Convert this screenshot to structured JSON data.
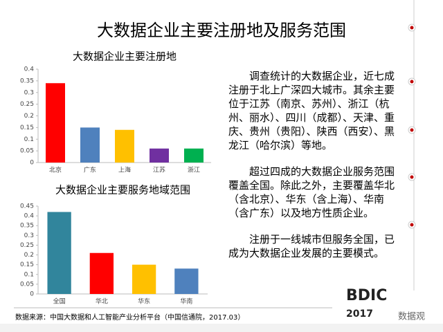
{
  "page": {
    "title": "大数据企业主要注册地及服务范围",
    "paragraphs": [
      "调查统计的大数据企业，近七成注册于北上广深四大城市。其余主要位于江苏（南京、苏州）、浙江（杭州、丽水）、四川（成都）、天津、重庆、贵州（贵阳）、陕西（西安）、黑龙江（哈尔滨）等地。",
      "超过四成的大数据企业服务范围覆盖全国。除此之外，主要覆盖华北（含北京）、华东（含上海）、华南（含广东）以及地方性质企业。",
      "注册于一线城市但服务全国，已成为大数据企业发展的主要模式。"
    ],
    "source": "数据来源：中国大数据和人工智能产业分析平台（中国信通院，2017.03）",
    "logo": "BDIC",
    "logo_year": "2017",
    "watermark": "数据观"
  },
  "chart_data": [
    {
      "type": "bar",
      "title": "大数据企业主要注册地",
      "categories": [
        "北京",
        "广东",
        "上海",
        "江苏",
        "浙江"
      ],
      "values": [
        0.34,
        0.15,
        0.14,
        0.06,
        0.06
      ],
      "colors": [
        "#ff0000",
        "#4f81bd",
        "#ffc000",
        "#7030a0",
        "#00b050"
      ],
      "ylim": [
        0,
        0.4
      ],
      "yticks": [
        0,
        0.05,
        0.1,
        0.15,
        0.2,
        0.25,
        0.3,
        0.35,
        0.4
      ],
      "grid": false
    },
    {
      "type": "bar",
      "title": "大数据企业主要服务地域范围",
      "categories": [
        "全国",
        "华北",
        "华东",
        "华南"
      ],
      "values": [
        0.42,
        0.21,
        0.15,
        0.13
      ],
      "colors": [
        "#31859c",
        "#ff0000",
        "#ffc000",
        "#4f81bd"
      ],
      "ylim": [
        0,
        0.45
      ],
      "yticks": [
        0,
        0.05,
        0.1,
        0.15,
        0.2,
        0.25,
        0.3,
        0.35,
        0.4,
        0.45
      ],
      "grid": false
    }
  ]
}
